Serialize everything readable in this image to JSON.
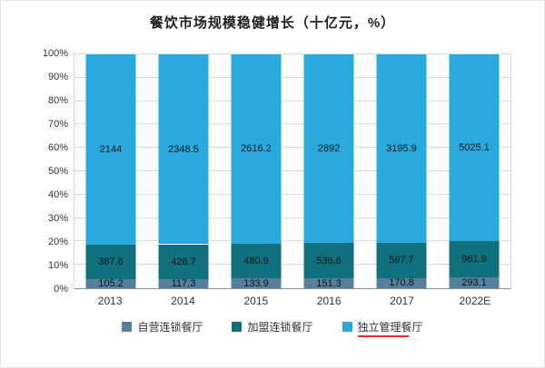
{
  "title": "餐饮市场规模稳健增长（十亿元，%）",
  "chart_data": {
    "type": "bar",
    "variant": "stacked-100-percent",
    "title": "餐饮市场规模稳健增长（十亿元，%）",
    "categories": [
      "2013",
      "2014",
      "2015",
      "2016",
      "2017",
      "2022E"
    ],
    "series": [
      {
        "name": "自营连锁餐厅",
        "color": "#54809e",
        "values": [
          105.2,
          117.3,
          133.9,
          151.3,
          170.8,
          293.1
        ]
      },
      {
        "name": "加盟连锁餐厅",
        "color": "#10707d",
        "values": [
          387.6,
          426.7,
          480.9,
          536.6,
          597.7,
          961.9
        ]
      },
      {
        "name": "独立管理餐厅",
        "color": "#29a9dc",
        "values": [
          2144,
          2348.5,
          2616.2,
          2892,
          3195.9,
          5025.1
        ]
      }
    ],
    "xlabel": "",
    "ylabel": "",
    "ylim": [
      0,
      100
    ],
    "ytick_step": 10,
    "ytick_labels": [
      "0%",
      "10%",
      "20%",
      "30%",
      "40%",
      "50%",
      "60%",
      "70%",
      "80%",
      "90%",
      "100%"
    ],
    "grid": true,
    "legend_position": "bottom"
  },
  "colors": {
    "grid": "#dcdcdc",
    "axis_line": "#8f8f8f",
    "plot_border": "#d9d9d9",
    "title_text": "#1f1f1f",
    "label_text": "#141414",
    "red_mark": "#e22d2d"
  },
  "legend_red_underline_index": 2
}
